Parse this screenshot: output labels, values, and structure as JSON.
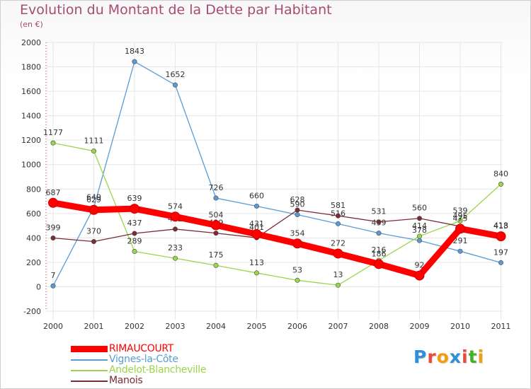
{
  "title": "Evolution du Montant de la Dette par Habitant",
  "unit": "(en €)",
  "logo": {
    "letters": [
      "P",
      "r",
      "o",
      "x",
      "i",
      "t",
      "i"
    ],
    "colors": [
      "#2f8fd8",
      "#e84c3d",
      "#f39c12",
      "#2f8fd8",
      "#e84c3d",
      "#43b02a",
      "#f39c12"
    ]
  },
  "chart_data": {
    "type": "line",
    "title": "Evolution du Montant de la Dette par Habitant",
    "ylabel": "(en €)",
    "xlabel": "",
    "x": [
      "2000",
      "2001",
      "2002",
      "2003",
      "2004",
      "2005",
      "2006",
      "2007",
      "2008",
      "2009",
      "2010",
      "2011"
    ],
    "ylim": [
      -200,
      2000
    ],
    "yticks": [
      -200,
      0,
      200,
      400,
      600,
      800,
      1000,
      1200,
      1400,
      1600,
      1800,
      2000
    ],
    "grid": true,
    "legend": "bottom-left",
    "series": [
      {
        "name": "Vignes-la-Côte",
        "color": "#5b9bd5",
        "values": [
          7,
          649,
          1843,
          1652,
          726,
          660,
          590,
          516,
          439,
          378,
          291,
          197
        ],
        "labels": [
          "7",
          "649",
          "1843",
          "1652",
          "726",
          "660",
          "590",
          "516",
          "439",
          "378",
          "291",
          "197"
        ]
      },
      {
        "name": "Andelot-Blancheville",
        "color": "#9bd54b",
        "values": [
          1177,
          1111,
          289,
          233,
          175,
          113,
          53,
          13,
          216,
          414,
          539,
          840
        ],
        "labels": [
          "1177",
          "1111",
          "289",
          "233",
          "175",
          "113",
          "53",
          "13",
          "216",
          "414",
          "539",
          "840"
        ]
      },
      {
        "name": "Manois",
        "color": "#7b2c35",
        "values": [
          399,
          370,
          437,
          472,
          439,
          401,
          628,
          581,
          531,
          560,
          495,
          418
        ],
        "labels": [
          "399",
          "370",
          "437",
          "472",
          "439",
          "401",
          "628",
          "581",
          "531",
          "560",
          "495",
          "418"
        ]
      },
      {
        "name": "RIMAUCOURT",
        "color": "#ff0000",
        "values": [
          687,
          629,
          639,
          574,
          504,
          431,
          354,
          272,
          186,
          92,
          475,
          413
        ],
        "labels": [
          "687",
          "629",
          "639",
          "574",
          "504",
          "431",
          "354",
          "272",
          "186",
          "92",
          "475",
          "413"
        ]
      }
    ],
    "legend_order": [
      "RIMAUCOURT",
      "Vignes-la-Côte",
      "Andelot-Blancheville",
      "Manois"
    ]
  }
}
